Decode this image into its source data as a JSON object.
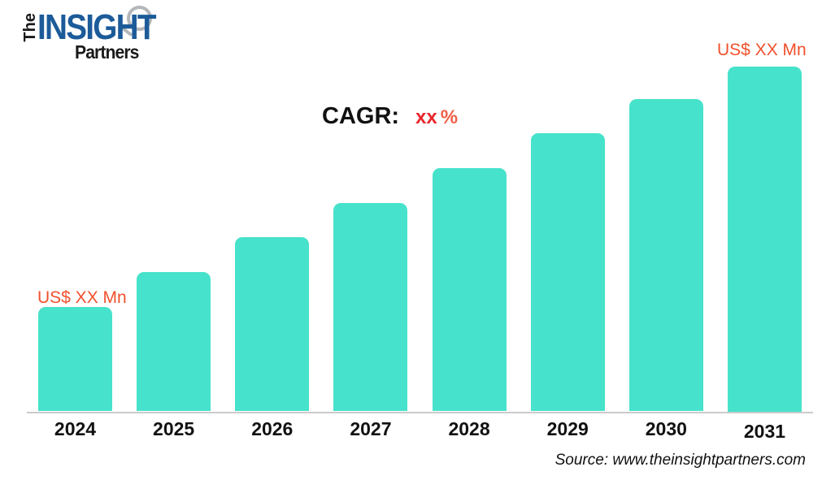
{
  "logo": {
    "the": "The",
    "insight": "INSIGHT",
    "partners": "Partners",
    "insight_color": "#1c5b99",
    "text_color": "#1a1a1a",
    "circle_color": "#b4b7ba"
  },
  "cagr": {
    "label": "CAGR:",
    "value_xx": "xx",
    "value_pct": "%",
    "xx_color": "#e8262b",
    "pct_color": "#f2604a"
  },
  "annotations": {
    "first_bar": "US$ XX Mn",
    "last_bar": "US$ XX Mn",
    "color": "#f0512d"
  },
  "source": {
    "text": "Source: www.theinsightpartners.com"
  },
  "chart_data": {
    "type": "bar",
    "title": "",
    "xlabel": "",
    "ylabel": "",
    "categories": [
      "2024",
      "2025",
      "2026",
      "2027",
      "2028",
      "2029",
      "2030",
      "2031"
    ],
    "values": [
      30,
      40,
      50,
      60,
      70,
      80,
      90,
      100
    ],
    "values_note": "actual amounts masked as 'US$ XX Mn'; values are relative bar heights (% of 2031 bar) estimated from pixels",
    "ylim": [
      0,
      100
    ],
    "grid": false,
    "legend": false,
    "bar_color": "#47e2cb",
    "axis_line_color": "#cbcbcb",
    "first_bar_annotation": "US$ XX Mn",
    "last_bar_annotation": "US$ XX Mn",
    "cagr_annotation": "CAGR: xx %",
    "source": "Source: www.theinsightpartners.com"
  }
}
